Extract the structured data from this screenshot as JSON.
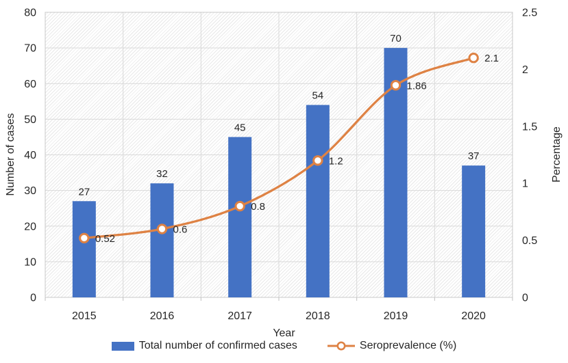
{
  "chart_data": {
    "type": "bar",
    "subtype": "combo-bar-line",
    "categories": [
      "2015",
      "2016",
      "2017",
      "2018",
      "2019",
      "2020"
    ],
    "series": [
      {
        "name": "Total number of confirmed cases",
        "type": "bar",
        "axis": "left",
        "color": "#4472C4",
        "values": [
          27,
          32,
          45,
          54,
          70,
          37
        ],
        "data_labels": [
          "27",
          "32",
          "45",
          "54",
          "70",
          "37"
        ]
      },
      {
        "name": "Seroprevalence (%)",
        "type": "line",
        "axis": "right",
        "color": "#DE8244",
        "marker": "open-circle",
        "values": [
          0.52,
          0.6,
          0.8,
          1.2,
          1.86,
          2.1
        ],
        "data_labels": [
          "0.52",
          "0.6",
          "0.8",
          "1.2",
          "1.86",
          "2.1"
        ]
      }
    ],
    "xlabel": "Year",
    "left_axis": {
      "title": "Number of cases",
      "min": 0,
      "max": 80,
      "ticks": [
        "0",
        "10",
        "20",
        "30",
        "40",
        "50",
        "60",
        "70",
        "80"
      ]
    },
    "right_axis": {
      "title": "Percentage",
      "min": 0,
      "max": 2.5,
      "ticks": [
        "0",
        "0.5",
        "1",
        "1.5",
        "2",
        "2.5"
      ]
    },
    "grid": true,
    "plot_background": "diagonal-hatch",
    "legend_position": "bottom",
    "gridline_color": "#D9D9D9",
    "text_color": "#262626"
  }
}
